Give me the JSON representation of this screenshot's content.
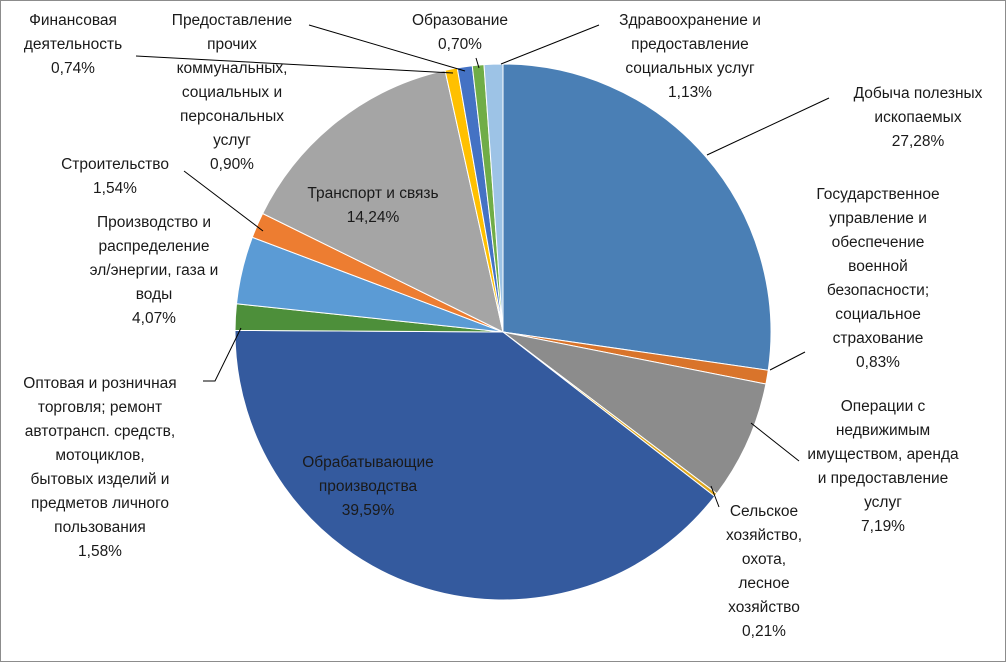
{
  "chart_data": {
    "type": "pie",
    "title": "",
    "unit": "%",
    "slices": [
      {
        "id": "mining",
        "label": "Добыча полезных ископаемых",
        "value": 27.28,
        "value_text": "27,28%",
        "color": "#4a7fb5"
      },
      {
        "id": "govt",
        "label": "Государственное управление и обеспечение военной безопасности; социальное страхование",
        "value": 0.83,
        "value_text": "0,83%",
        "color": "#d9742b"
      },
      {
        "id": "realestate",
        "label": "Операции с недвижимым имуществом, аренда и предоставление услуг",
        "value": 7.19,
        "value_text": "7,19%",
        "color": "#8c8c8c"
      },
      {
        "id": "agriculture",
        "label": "Сельское хозяйство, охота, лесное хозяйство",
        "value": 0.21,
        "value_text": "0,21%",
        "color": "#e0a81c"
      },
      {
        "id": "manufacturing",
        "label": "Обрабатывающие производства",
        "value": 39.59,
        "value_text": "39,59%",
        "color": "#345a9e"
      },
      {
        "id": "trade",
        "label": "Оптовая и розничная торговля; ремонт автотрансп. средств, мотоциклов, бытовых изделий и предметов личного пользования",
        "value": 1.58,
        "value_text": "1,58%",
        "color": "#4d8f3a"
      },
      {
        "id": "energy",
        "label": "Производство и распределение эл/энергии, газа и воды",
        "value": 4.07,
        "value_text": "4,07%",
        "color": "#5b9bd5"
      },
      {
        "id": "construction",
        "label": "Строительство",
        "value": 1.54,
        "value_text": "1,54%",
        "color": "#ed7d31"
      },
      {
        "id": "transport",
        "label": "Транспорт и связь",
        "value": 14.24,
        "value_text": "14,24%",
        "color": "#a5a5a5"
      },
      {
        "id": "finance",
        "label": "Финансовая деятельность",
        "value": 0.74,
        "value_text": "0,74%",
        "color": "#ffc000"
      },
      {
        "id": "community",
        "label": "Предоставление прочих коммунальных, социальных и персональных услуг",
        "value": 0.9,
        "value_text": "0,90%",
        "color": "#4472c4"
      },
      {
        "id": "education",
        "label": "Образование",
        "value": 0.7,
        "value_text": "0,70%",
        "color": "#70ad47"
      },
      {
        "id": "health",
        "label": "Здравоохранение и предоставление социальных услуг",
        "value": 1.13,
        "value_text": "1,13%",
        "color": "#9dc3e6"
      }
    ]
  },
  "labels": {
    "mining": {
      "lines": [
        "Добыча полезных",
        "ископаемых",
        "27,28%"
      ]
    },
    "govt": {
      "lines": [
        "Государственное",
        "управление и",
        "обеспечение",
        "военной",
        "безопасности;",
        "социальное",
        "страхование",
        "0,83%"
      ]
    },
    "realestate": {
      "lines": [
        "Операции с",
        "недвижимым",
        "имуществом, аренда",
        "и предоставление",
        "услуг",
        "7,19%"
      ]
    },
    "agriculture": {
      "lines": [
        "Сельское",
        "хозяйство,",
        "охота,",
        "лесное",
        "хозяйство",
        "0,21%"
      ]
    },
    "manufacturing": {
      "lines": [
        "Обрабатывающие",
        "производства",
        "39,59%"
      ]
    },
    "trade": {
      "lines": [
        "Оптовая и розничная",
        "торговля; ремонт",
        "автотрансп. средств,",
        "мотоциклов,",
        "бытовых изделий и",
        "предметов личного",
        "пользования",
        "1,58%"
      ]
    },
    "energy": {
      "lines": [
        "Производство и",
        "распределение",
        "эл/энергии, газа и",
        "воды",
        "4,07%"
      ]
    },
    "construction": {
      "lines": [
        "Строительство",
        "1,54%"
      ]
    },
    "transport": {
      "lines": [
        "Транспорт и связь",
        "14,24%"
      ]
    },
    "finance": {
      "lines": [
        "Финансовая",
        "деятельность",
        "0,74%"
      ]
    },
    "community": {
      "lines": [
        "Предоставление",
        "прочих",
        "коммунальных,",
        "социальных и",
        "персональных",
        "услуг",
        "0,90%"
      ]
    },
    "education": {
      "lines": [
        "Образование",
        "0,70%"
      ]
    },
    "health": {
      "lines": [
        "Здравоохранение и",
        "предоставление",
        "социальных услуг",
        "1,13%"
      ]
    }
  }
}
